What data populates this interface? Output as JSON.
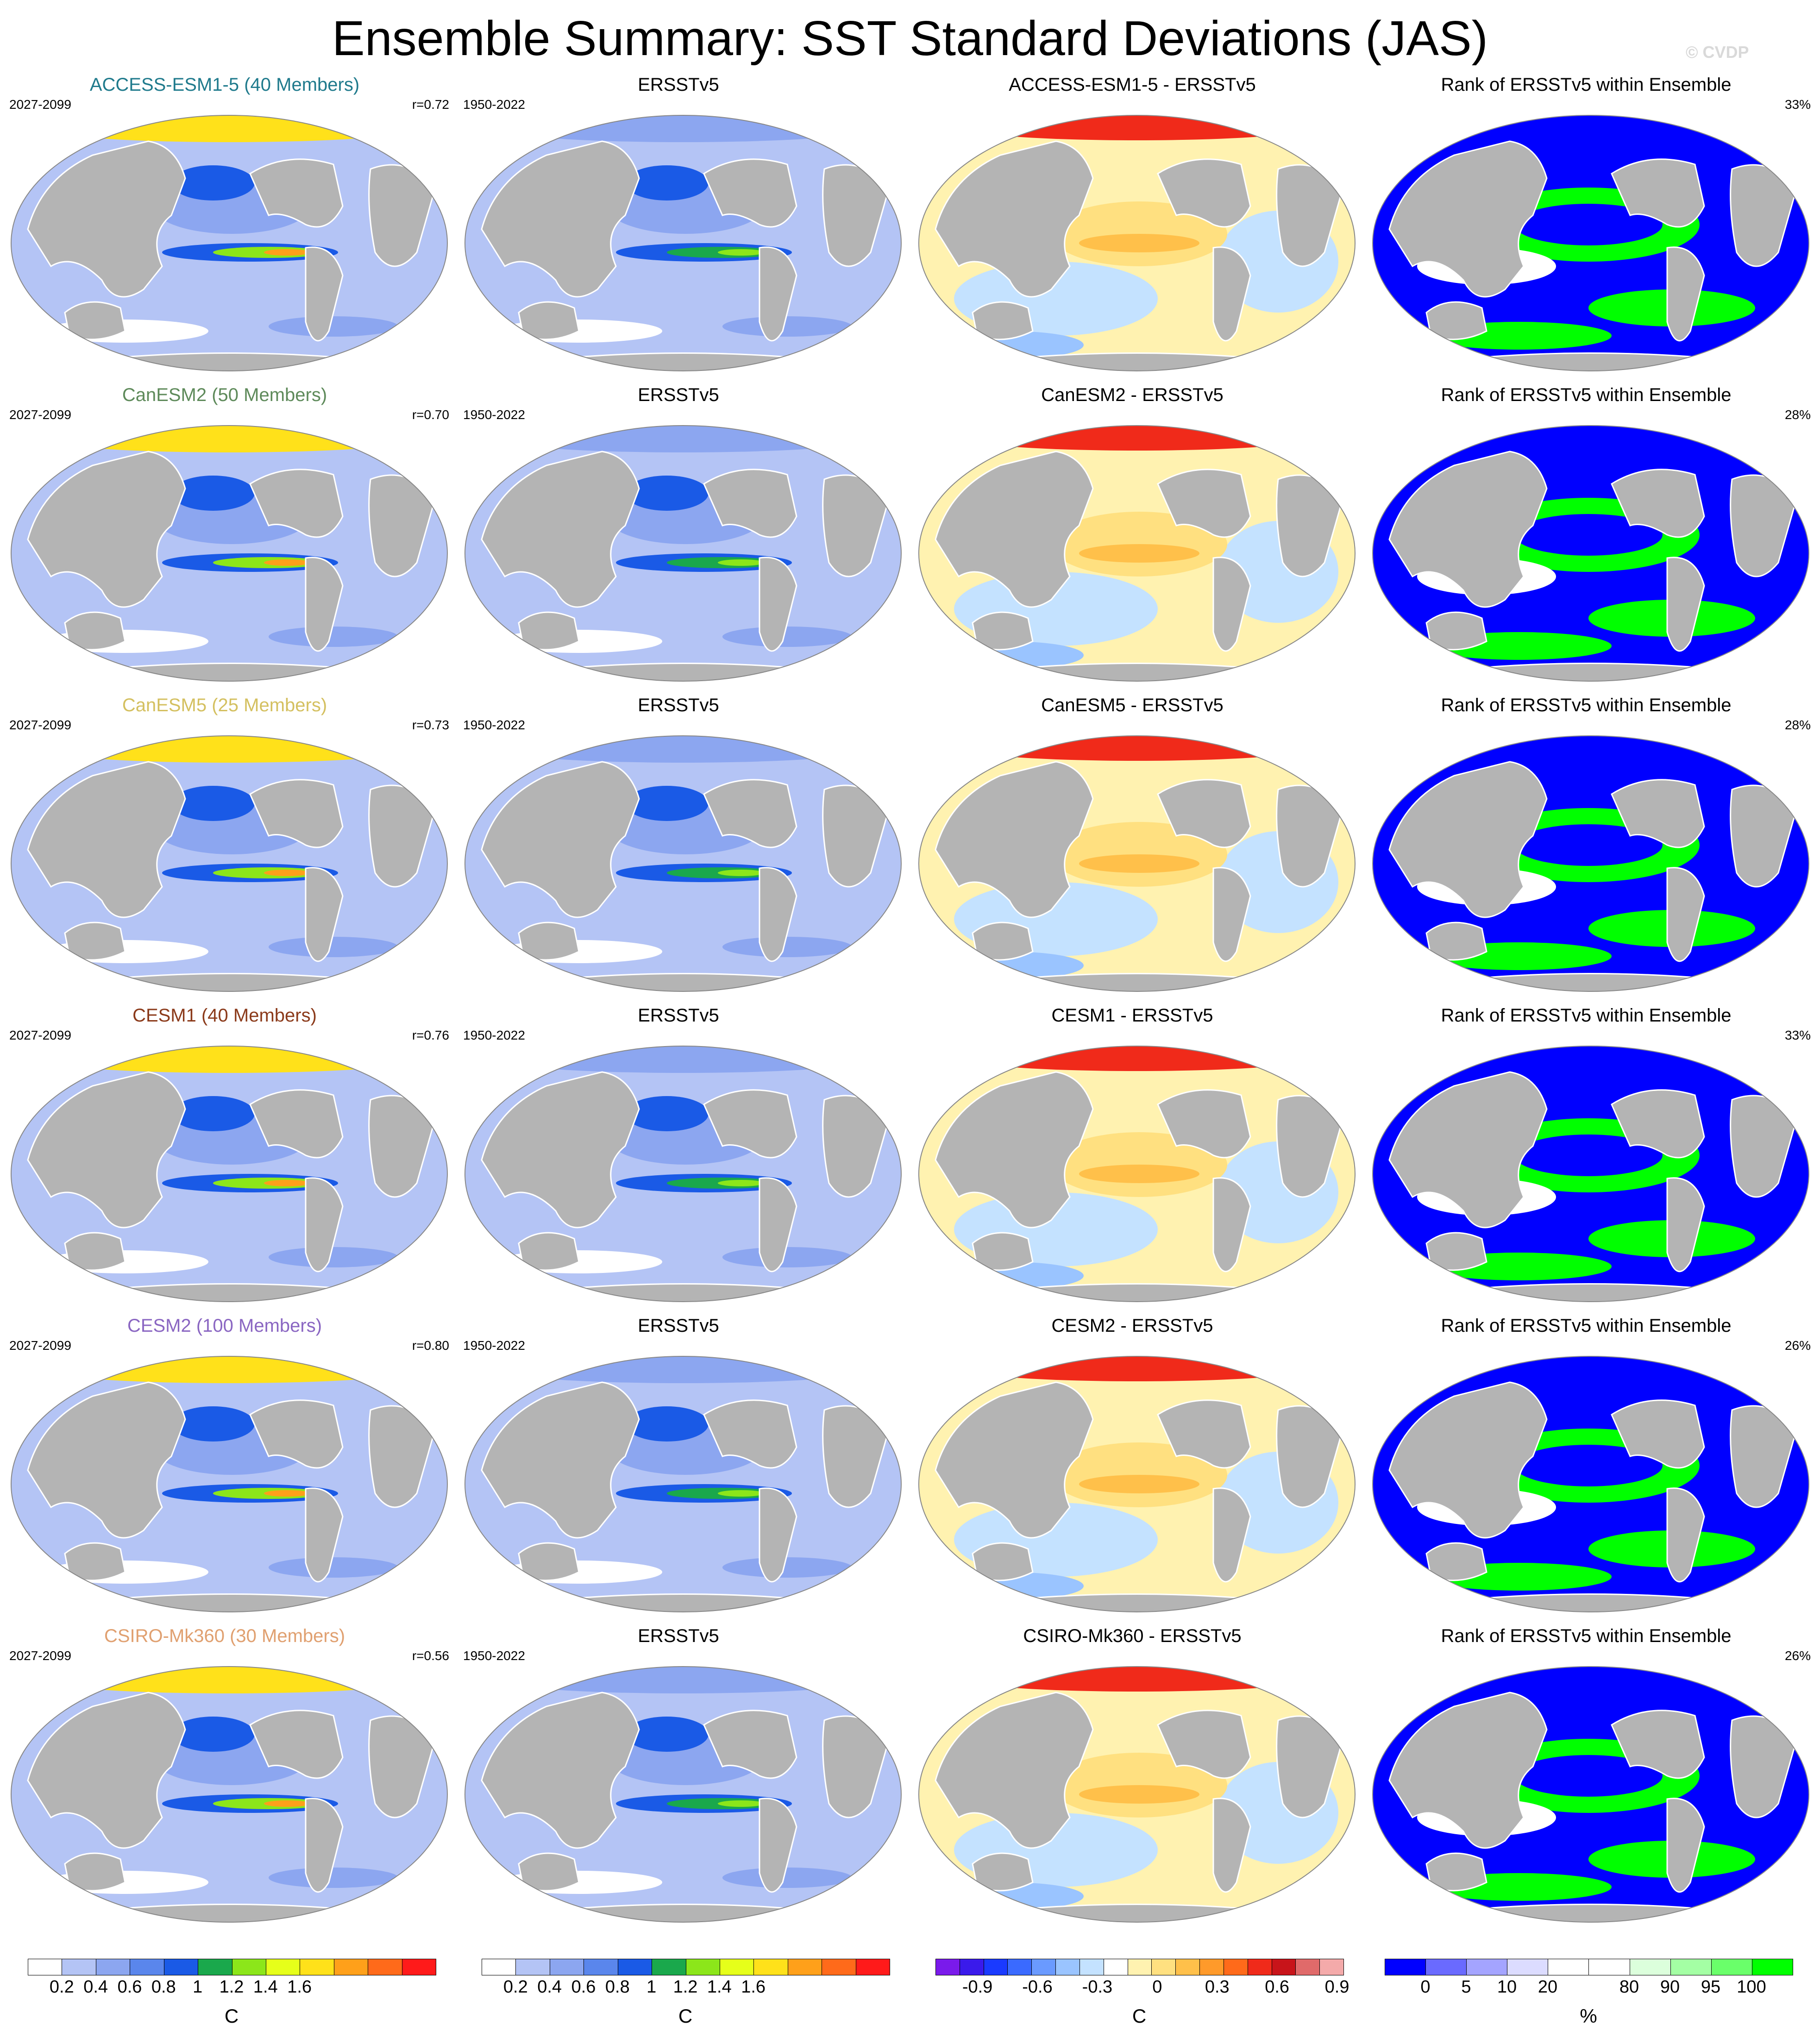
{
  "title": "Ensemble Summary: SST Standard Deviations (JAS)",
  "watermark": "© CVDP",
  "rows": [
    {
      "model_title": "ACCESS-ESM1-5 (40 Members)",
      "model_color": "#1f7a8c",
      "model_period": "2027-2099",
      "r": "r=0.72",
      "obs_title": "ERSSTv5",
      "obs_period": "1950-2022",
      "diff_title": "ACCESS-ESM1-5 - ERSSTv5",
      "rank_title": "Rank of ERSSTv5 within Ensemble",
      "rank_pct": "33%"
    },
    {
      "model_title": "CanESM2 (50 Members)",
      "model_color": "#5e8a5a",
      "model_period": "2027-2099",
      "r": "r=0.70",
      "obs_title": "ERSSTv5",
      "obs_period": "1950-2022",
      "diff_title": "CanESM2 - ERSSTv5",
      "rank_title": "Rank of ERSSTv5 within Ensemble",
      "rank_pct": "28%"
    },
    {
      "model_title": "CanESM5 (25 Members)",
      "model_color": "#d4c060",
      "model_period": "2027-2099",
      "r": "r=0.73",
      "obs_title": "ERSSTv5",
      "obs_period": "1950-2022",
      "diff_title": "CanESM5 - ERSSTv5",
      "rank_title": "Rank of ERSSTv5 within Ensemble",
      "rank_pct": "28%"
    },
    {
      "model_title": "CESM1 (40 Members)",
      "model_color": "#8b3a1a",
      "model_period": "2027-2099",
      "r": "r=0.76",
      "obs_title": "ERSSTv5",
      "obs_period": "1950-2022",
      "diff_title": "CESM1 - ERSSTv5",
      "rank_title": "Rank of ERSSTv5 within Ensemble",
      "rank_pct": "33%"
    },
    {
      "model_title": "CESM2 (100 Members)",
      "model_color": "#8a66c2",
      "model_period": "2027-2099",
      "r": "r=0.80",
      "obs_title": "ERSSTv5",
      "obs_period": "1950-2022",
      "diff_title": "CESM2 - ERSSTv5",
      "rank_title": "Rank of ERSSTv5 within Ensemble",
      "rank_pct": "26%"
    },
    {
      "model_title": "CSIRO-Mk360 (30 Members)",
      "model_color": "#e0a070",
      "model_period": "2027-2099",
      "r": "r=0.56",
      "obs_title": "ERSSTv5",
      "obs_period": "1950-2022",
      "diff_title": "CSIRO-Mk360 - ERSSTv5",
      "rank_title": "Rank of ERSSTv5 within Ensemble",
      "rank_pct": "26%"
    }
  ],
  "colorbars": [
    {
      "unit": "C",
      "colors": [
        "#ffffff",
        "#b4c4f5",
        "#8ca6f0",
        "#5a86ec",
        "#1a5ae6",
        "#1aa84c",
        "#8ce61a",
        "#e6ff1a",
        "#ffe11a",
        "#ffa01a",
        "#ff6a1a",
        "#ff1a1a"
      ],
      "ticks": [
        "0.2",
        "0.4",
        "0.6",
        "0.8",
        "1",
        "1.2",
        "1.4",
        "1.6"
      ]
    },
    {
      "unit": "C",
      "colors": [
        "#ffffff",
        "#b4c4f5",
        "#8ca6f0",
        "#5a86ec",
        "#1a5ae6",
        "#1aa84c",
        "#8ce61a",
        "#e6ff1a",
        "#ffe11a",
        "#ffa01a",
        "#ff6a1a",
        "#ff1a1a"
      ],
      "ticks": [
        "0.2",
        "0.4",
        "0.6",
        "0.8",
        "1",
        "1.2",
        "1.4",
        "1.6"
      ]
    },
    {
      "unit": "C",
      "colors": [
        "#7a1aeb",
        "#3a1aeb",
        "#1a3aff",
        "#3a6aff",
        "#6a9aff",
        "#9ac4ff",
        "#c4e2ff",
        "#ffffff",
        "#fff2b0",
        "#ffe080",
        "#ffc04a",
        "#ff9a2a",
        "#ff6a1a",
        "#f02a1a",
        "#c8141a",
        "#e06a6a",
        "#f4aaaa"
      ],
      "ticks": [
        "-0.9",
        "-0.6",
        "-0.3",
        "0",
        "0.3",
        "0.6",
        "0.9"
      ]
    },
    {
      "unit": "%",
      "colors": [
        "#0000ff",
        "#6a6aff",
        "#a4a4ff",
        "#dcdcff",
        "#ffffff",
        "#ffffff",
        "#dcffdc",
        "#a4ffa4",
        "#6aff6a",
        "#00ff00"
      ],
      "ticks": [
        "0",
        "5",
        "10",
        "20",
        "80",
        "90",
        "95",
        "100"
      ]
    }
  ]
}
